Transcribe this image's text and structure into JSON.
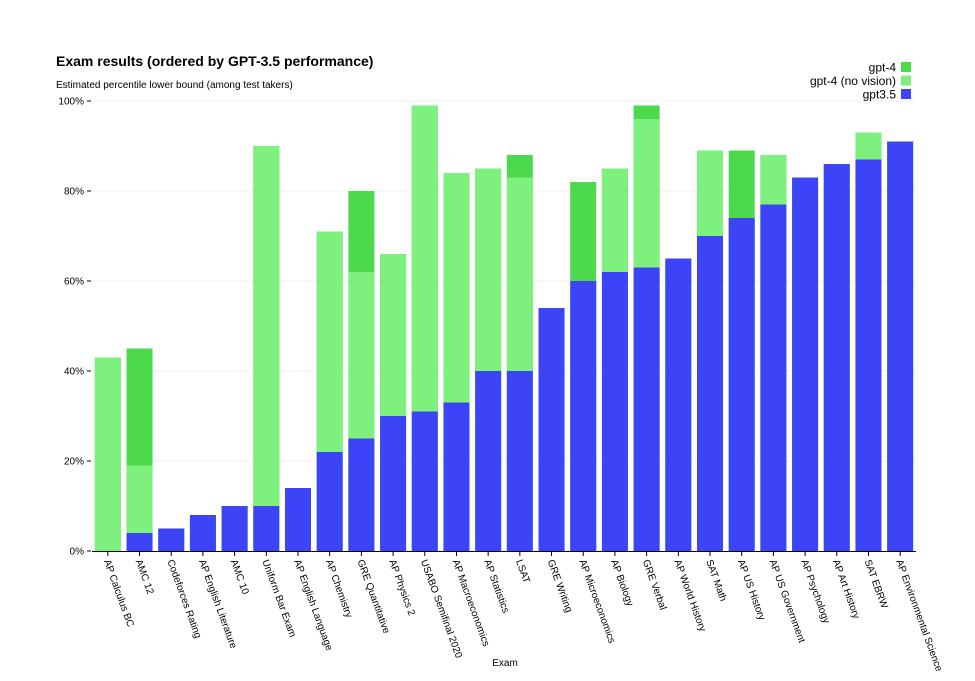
{
  "chart_data": {
    "type": "bar",
    "stacked": "overlay",
    "title": "Exam results (ordered by GPT-3.5 performance)",
    "subtitle": "Estimated percentile lower bound (among test takers)",
    "xlabel": "Exam",
    "ylabel": "",
    "ylim": [
      0,
      100
    ],
    "yticks": [
      "0%",
      "20%",
      "40%",
      "60%",
      "80%",
      "100%"
    ],
    "grid": true,
    "legend_position": "top-right",
    "categories": [
      "AP Calculus BC",
      "AMC 12",
      "Codeforces Rating",
      "AP English Literature",
      "AMC 10",
      "Uniform Bar Exam",
      "AP English Language",
      "AP Chemistry",
      "GRE Quantitative",
      "AP Physics 2",
      "USABO Semifinal 2020",
      "AP Macroeconomics",
      "AP Statistics",
      "LSAT",
      "GRE Writing",
      "AP Microeconomics",
      "AP Biology",
      "GRE Verbal",
      "AP World History",
      "SAT Math",
      "AP US History",
      "AP US Government",
      "AP Psychology",
      "AP Art History",
      "SAT EBRW",
      "AP Environmental Science"
    ],
    "series": [
      {
        "name": "gpt-4",
        "color": "#4cd94c",
        "values": [
          43,
          45,
          5,
          8,
          10,
          90,
          14,
          71,
          80,
          66,
          99,
          84,
          85,
          88,
          54,
          82,
          85,
          99,
          65,
          89,
          89,
          88,
          83,
          86,
          93,
          91
        ]
      },
      {
        "name": "gpt-4 (no vision)",
        "color": "#7ef07e",
        "values": [
          43,
          19,
          5,
          8,
          10,
          90,
          14,
          71,
          62,
          66,
          99,
          84,
          85,
          83,
          54,
          60,
          85,
          96,
          65,
          89,
          74,
          88,
          83,
          86,
          93,
          91
        ]
      },
      {
        "name": "gpt3.5",
        "color": "#3d43f7",
        "values": [
          0,
          4,
          5,
          8,
          10,
          10,
          14,
          22,
          25,
          30,
          31,
          33,
          40,
          40,
          54,
          60,
          62,
          63,
          65,
          70,
          74,
          77,
          83,
          86,
          87,
          91
        ]
      }
    ]
  }
}
